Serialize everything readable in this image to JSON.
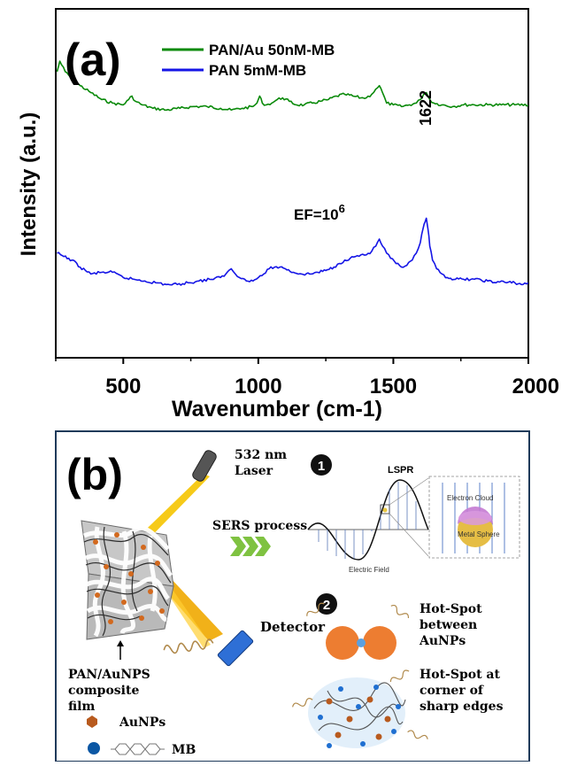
{
  "panel_a": {
    "label": "(a)",
    "ylabel": "Intensity (a.u.)",
    "xlabel": "Wavenumber (cm-1)",
    "legend": [
      {
        "name": "PAN/Au 50nM-MB",
        "color": "#0a8a0a"
      },
      {
        "name": "PAN 5mM-MB",
        "color": "#1515e6"
      }
    ],
    "peak_label": "1622",
    "ef_text": "EF=10",
    "ef_superscript": "6"
  },
  "chart_data": {
    "type": "line",
    "xlabel": "Wavenumber (cm-1)",
    "ylabel": "Intensity (a.u.)",
    "xlim": [
      250,
      2000
    ],
    "ylim": [
      0,
      100
    ],
    "xticks": [
      500,
      1000,
      1500,
      2000
    ],
    "xtick_labels": [
      "500",
      "1000",
      "1500",
      "2000"
    ],
    "grid": false,
    "legend_position": "top-center",
    "series": [
      {
        "name": "PAN/Au 50nM-MB",
        "color": "#0a8a0a",
        "x": [
          255,
          265,
          285,
          310,
          340,
          380,
          420,
          460,
          500,
          520,
          532,
          545,
          570,
          610,
          660,
          710,
          760,
          810,
          860,
          900,
          940,
          980,
          995,
          1005,
          1015,
          1030,
          1050,
          1070,
          1090,
          1115,
          1140,
          1170,
          1200,
          1230,
          1260,
          1290,
          1320,
          1350,
          1380,
          1400,
          1420,
          1435,
          1448,
          1460,
          1475,
          1500,
          1530,
          1560,
          1585,
          1600,
          1612,
          1622,
          1635,
          1650,
          1680,
          1720,
          1760,
          1800,
          1850,
          1900,
          1950,
          2000
        ],
        "y": [
          82,
          85,
          82,
          80,
          78,
          76,
          74,
          73,
          72.5,
          74,
          75,
          73.5,
          72.5,
          71.5,
          71,
          71.5,
          72,
          72,
          71.5,
          71,
          71.5,
          72,
          73,
          75,
          73,
          72.5,
          73,
          74,
          74.5,
          73.5,
          72.5,
          72.5,
          73,
          73.5,
          74,
          75,
          75.5,
          75,
          74.5,
          74.5,
          75.5,
          77,
          78,
          76,
          73,
          72.5,
          72,
          72.5,
          73,
          74,
          75.5,
          76,
          74,
          73,
          72.5,
          72,
          72.5,
          72.5,
          72.5,
          72.5,
          72.5,
          72.5
        ]
      },
      {
        "name": "PAN 5mM-MB",
        "color": "#1515e6",
        "x": [
          255,
          280,
          310,
          340,
          380,
          420,
          460,
          500,
          540,
          580,
          620,
          660,
          700,
          740,
          780,
          820,
          860,
          880,
          900,
          915,
          930,
          950,
          980,
          1000,
          1020,
          1040,
          1060,
          1080,
          1100,
          1130,
          1160,
          1190,
          1220,
          1250,
          1280,
          1300,
          1320,
          1340,
          1360,
          1380,
          1400,
          1420,
          1435,
          1448,
          1460,
          1475,
          1490,
          1510,
          1530,
          1550,
          1570,
          1585,
          1600,
          1610,
          1618,
          1622,
          1628,
          1635,
          1645,
          1660,
          1680,
          1700,
          1730,
          1760,
          1800,
          1850,
          1880,
          1900,
          1920,
          1950,
          1980,
          2000
        ],
        "y": [
          30,
          29,
          28,
          26,
          24,
          24.5,
          24.5,
          23,
          22.5,
          22,
          21.5,
          21,
          21,
          21.5,
          22,
          22.5,
          23,
          24,
          25.5,
          24,
          23,
          22.5,
          22,
          23,
          24,
          25.5,
          26,
          26,
          25.5,
          24.5,
          24,
          24,
          24.5,
          25,
          26,
          27,
          28,
          28.5,
          29,
          29.5,
          29.5,
          30.5,
          32,
          34,
          32,
          30,
          28.5,
          27,
          26,
          26.5,
          28,
          30,
          33,
          37,
          39,
          40,
          37,
          32,
          28,
          25.5,
          24,
          23,
          22.5,
          22.5,
          22.5,
          22,
          21.5,
          22,
          21.5,
          21.5,
          21,
          21.5
        ]
      }
    ]
  },
  "panel_b": {
    "label": "(b)",
    "laser_label": "532 nm Laser",
    "laser_line1": "532 nm",
    "laser_line2": "Laser",
    "sers_process": "SERS process",
    "detector": "Detector",
    "film_line1": "PAN/AuNPS",
    "film_line2": "composite",
    "film_line3": "film",
    "legend_aunps": "AuNPs",
    "legend_mb": "MB",
    "step1": "1",
    "step2": "2",
    "lspr": "LSPR",
    "electric_field": "Electric Field",
    "electron_cloud": "Electron Cloud",
    "metal_sphere": "Metal Sphere",
    "hot1_line1": "Hot-Spot",
    "hot1_line2": "between",
    "hot1_line3": "AuNPs",
    "hot2_line1": "Hot-Spot at",
    "hot2_line2": "corner of",
    "hot2_line3": "sharp edges"
  }
}
